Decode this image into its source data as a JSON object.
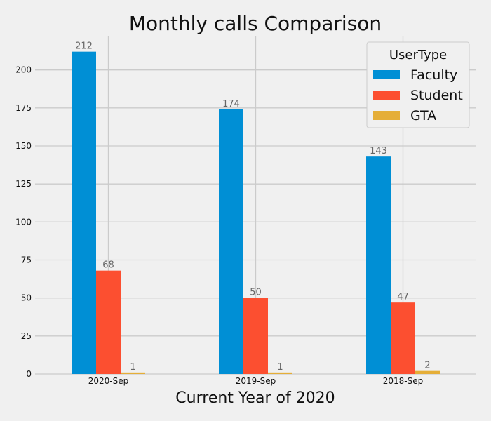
{
  "chart_data": {
    "type": "bar",
    "title": "Monthly calls Comparison",
    "xlabel": "Current Year of 2020",
    "ylabel": "",
    "categories": [
      "2020-Sep",
      "2019-Sep",
      "2018-Sep"
    ],
    "series": [
      {
        "name": "Faculty",
        "values": [
          212,
          174,
          143
        ],
        "color": "#008fd5"
      },
      {
        "name": "Student",
        "values": [
          68,
          50,
          47
        ],
        "color": "#fc4f30"
      },
      {
        "name": "GTA",
        "values": [
          1,
          1,
          2
        ],
        "color": "#e5ae38"
      }
    ],
    "ylim": [
      0,
      222
    ],
    "yticks": [
      0,
      25,
      50,
      75,
      100,
      125,
      150,
      175,
      200
    ],
    "grid": true,
    "legend": {
      "title": "UserType",
      "placement": "top-right"
    }
  }
}
